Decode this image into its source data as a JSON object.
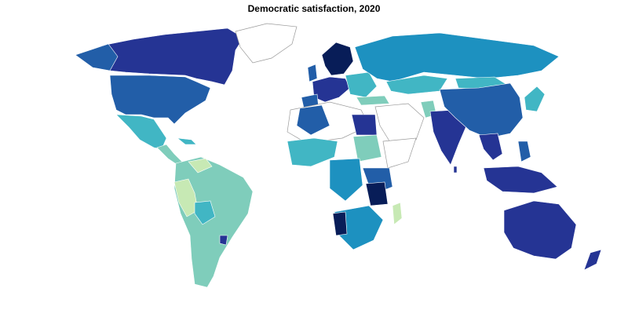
{
  "map": {
    "title": "Democratic satisfaction, 2020",
    "palette": {
      "very_high": "#081d58",
      "high": "#253494",
      "upper_mid": "#225ea8",
      "mid": "#1d91c0",
      "lower_mid": "#41b6c4",
      "low": "#7fcdbb",
      "very_low": "#c7e9b4",
      "no_data": "#ffffff"
    }
  }
}
